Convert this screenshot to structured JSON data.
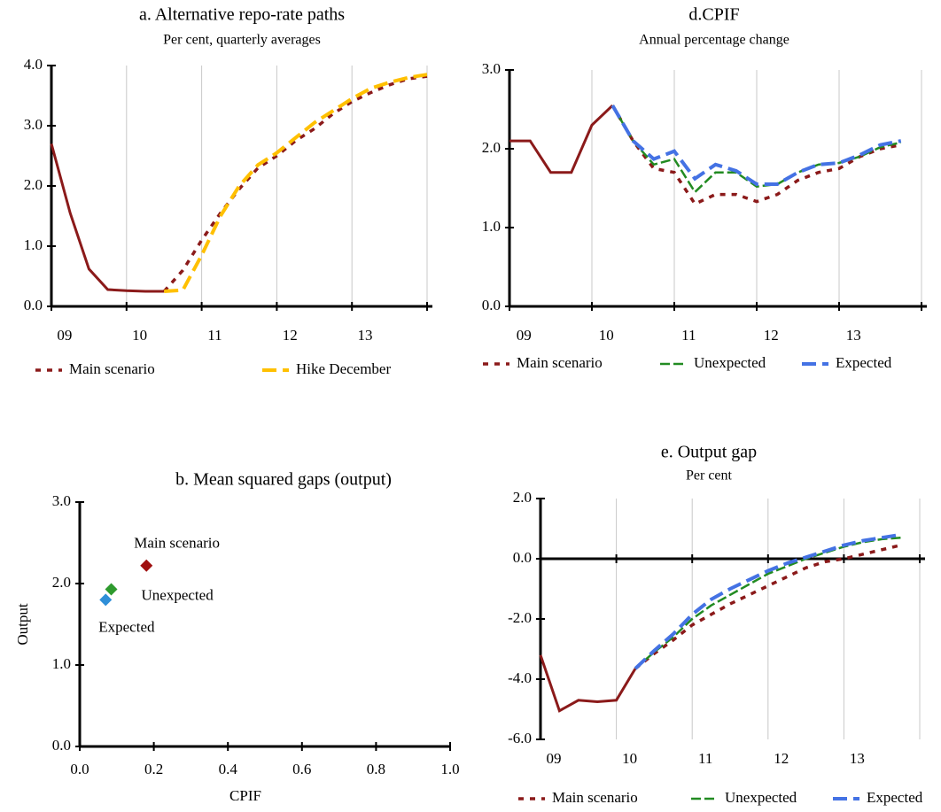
{
  "chart_data": [
    {
      "type": "line",
      "title": "a. Alternative repo-rate paths",
      "subtitle": "Per cent, quarterly averages",
      "categories": [
        null,
        "09",
        null,
        null,
        null,
        "10",
        null,
        null,
        null,
        "11",
        null,
        null,
        null,
        "12",
        null,
        null,
        null,
        "13",
        null,
        null,
        null
      ],
      "ylim": [
        0,
        4
      ],
      "yticks": [
        {
          "value": 0,
          "label": "0.0"
        },
        {
          "value": 1,
          "label": "1.0"
        },
        {
          "value": 2,
          "label": "2.0"
        },
        {
          "value": 3,
          "label": "3.0"
        },
        {
          "value": 4,
          "label": "4.0"
        }
      ],
      "series": [
        {
          "color": "#8b1a1a",
          "dash": "solid",
          "values": [
            2.7,
            1.55,
            0.62,
            0.28,
            0.26,
            0.25,
            0.25,
            null,
            null,
            null,
            null,
            null,
            null,
            null,
            null,
            null,
            null,
            null,
            null,
            null,
            null
          ]
        },
        {
          "name": "Main scenario",
          "color": "#8b1a1a",
          "dash": "dotted",
          "values": [
            null,
            null,
            null,
            null,
            null,
            null,
            0.25,
            0.6,
            1.1,
            1.55,
            1.95,
            2.3,
            2.5,
            2.75,
            2.95,
            3.2,
            3.4,
            3.55,
            3.68,
            3.78,
            3.82
          ]
        },
        {
          "name": "Hike December",
          "color": "#ffc000",
          "dash": "long",
          "values": [
            null,
            null,
            null,
            null,
            null,
            null,
            0.25,
            0.27,
            0.85,
            1.5,
            2.0,
            2.35,
            2.55,
            2.8,
            3.05,
            3.25,
            3.45,
            3.62,
            3.72,
            3.8,
            3.85
          ]
        }
      ]
    },
    {
      "type": "line",
      "title": "d.CPIF",
      "subtitle": "Annual percentage change",
      "categories": [
        null,
        "09",
        null,
        null,
        null,
        "10",
        null,
        null,
        null,
        "11",
        null,
        null,
        null,
        "12",
        null,
        null,
        null,
        "13",
        null,
        null,
        null
      ],
      "ylim": [
        0,
        3
      ],
      "yticks": [
        {
          "value": 0,
          "label": "0.0"
        },
        {
          "value": 1,
          "label": "1.0"
        },
        {
          "value": 2,
          "label": "2.0"
        },
        {
          "value": 3,
          "label": "3.0"
        }
      ],
      "series": [
        {
          "color": "#8b1a1a",
          "dash": "solid",
          "values": [
            2.1,
            2.1,
            1.7,
            1.7,
            2.3,
            2.55,
            null,
            null,
            null,
            null,
            null,
            null,
            null,
            null,
            null,
            null,
            null,
            null,
            null,
            null,
            null
          ]
        },
        {
          "name": "Main scenario",
          "color": "#8b1a1a",
          "dash": "dotted",
          "values": [
            null,
            null,
            null,
            null,
            null,
            2.55,
            2.1,
            1.75,
            1.7,
            1.3,
            1.42,
            1.42,
            1.33,
            1.42,
            1.6,
            1.7,
            1.75,
            1.9,
            2.0,
            2.05,
            null
          ]
        },
        {
          "name": "Unexpected",
          "color": "#228b22",
          "dash": "dashed",
          "values": [
            null,
            null,
            null,
            null,
            null,
            2.55,
            2.1,
            1.8,
            1.87,
            1.45,
            1.7,
            1.7,
            1.52,
            1.55,
            1.7,
            1.8,
            1.82,
            1.9,
            2.02,
            2.08,
            null
          ]
        },
        {
          "name": "Expected",
          "color": "#4472e4",
          "dash": "long",
          "values": [
            null,
            null,
            null,
            null,
            null,
            2.55,
            2.1,
            1.87,
            1.97,
            1.62,
            1.8,
            1.72,
            1.55,
            1.55,
            1.7,
            1.8,
            1.82,
            1.92,
            2.05,
            2.1,
            null
          ]
        }
      ]
    },
    {
      "type": "scatter",
      "title": "b. Mean squared gaps (output)",
      "x_label": "CPIF",
      "y_label": "Output",
      "xlim": [
        0,
        1
      ],
      "xticks": [
        {
          "value": 0,
          "label": "0.0"
        },
        {
          "value": 0.2,
          "label": "0.2"
        },
        {
          "value": 0.4,
          "label": "0.4"
        },
        {
          "value": 0.6,
          "label": "0.6"
        },
        {
          "value": 0.8,
          "label": "0.8"
        },
        {
          "value": 1,
          "label": "1.0"
        }
      ],
      "ylim": [
        0,
        3
      ],
      "yticks": [
        {
          "value": 0,
          "label": "0.0"
        },
        {
          "value": 1,
          "label": "1.0"
        },
        {
          "value": 2,
          "label": "2.0"
        },
        {
          "value": 3,
          "label": "3.0"
        }
      ],
      "series": [
        {
          "name": "Main scenario",
          "color": "#a01010",
          "x": [
            0.18
          ],
          "values": [
            2.22
          ]
        },
        {
          "name": "Unexpected",
          "color": "#2e9a2e",
          "x": [
            0.085
          ],
          "values": [
            1.93
          ]
        },
        {
          "name": "Expected",
          "color": "#2f8fd8",
          "x": [
            0.07
          ],
          "values": [
            1.8
          ]
        }
      ]
    },
    {
      "type": "line",
      "title": "e. Output gap",
      "subtitle": "Per cent",
      "categories": [
        null,
        "09",
        null,
        null,
        null,
        "10",
        null,
        null,
        null,
        "11",
        null,
        null,
        null,
        "12",
        null,
        null,
        null,
        "13",
        null,
        null,
        null
      ],
      "ylim": [
        -6,
        2
      ],
      "yticks": [
        {
          "value": -6,
          "label": "-6.0"
        },
        {
          "value": -4,
          "label": "-4.0"
        },
        {
          "value": -2,
          "label": "-2.0"
        },
        {
          "value": 0,
          "label": "0.0"
        },
        {
          "value": 2,
          "label": "2.0"
        }
      ],
      "series": [
        {
          "color": "#8b1a1a",
          "dash": "solid",
          "values": [
            -3.2,
            -5.05,
            -4.7,
            -4.75,
            -4.7,
            -3.65,
            null,
            null,
            null,
            null,
            null,
            null,
            null,
            null,
            null,
            null,
            null,
            null,
            null,
            null,
            null
          ]
        },
        {
          "name": "Main scenario",
          "color": "#8b1a1a",
          "dash": "dotted",
          "values": [
            null,
            null,
            null,
            null,
            null,
            -3.65,
            -3.15,
            -2.7,
            -2.2,
            -1.85,
            -1.5,
            -1.2,
            -0.9,
            -0.6,
            -0.3,
            -0.1,
            0.0,
            0.15,
            0.3,
            0.45,
            null
          ]
        },
        {
          "name": "Unexpected",
          "color": "#228b22",
          "dash": "dashed",
          "values": [
            null,
            null,
            null,
            null,
            null,
            -3.65,
            -3.1,
            -2.6,
            -2.0,
            -1.55,
            -1.2,
            -0.85,
            -0.5,
            -0.25,
            0.0,
            0.2,
            0.4,
            0.55,
            0.65,
            0.7,
            null
          ]
        },
        {
          "name": "Expected",
          "color": "#4472e4",
          "dash": "long",
          "values": [
            null,
            null,
            null,
            null,
            null,
            -3.65,
            -3.05,
            -2.5,
            -1.85,
            -1.35,
            -1.0,
            -0.7,
            -0.4,
            -0.15,
            0.05,
            0.25,
            0.45,
            0.6,
            0.7,
            0.8,
            null
          ]
        }
      ]
    }
  ]
}
